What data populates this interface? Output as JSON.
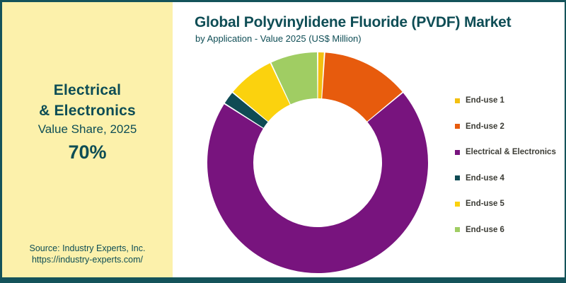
{
  "page": {
    "frame_color": "#14535a",
    "sidebar_bg": "#fcf1ab",
    "teal_text": "#0d4d55",
    "legend_text_color": "#3c3c35"
  },
  "header": {
    "title": "Global Polyvinylidene Fluoride (PVDF) Market",
    "subtitle": "by Application - Value 2025 (US$ Million)"
  },
  "sidebar": {
    "highlight_line1": "Electrical",
    "highlight_line2": "& Electronics",
    "caption": "Value Share, 2025",
    "value": "70%",
    "source_line1": "Source: Industry Experts, Inc.",
    "source_line2": "https://industry-experts.com/"
  },
  "chart_data": {
    "type": "pie",
    "variant": "donut",
    "title": "Global Polyvinylidene Fluoride (PVDF) Market",
    "subtitle": "by Application - Value 2025 (US$ Million)",
    "values_are_percent_share": true,
    "start_angle_deg": 0,
    "direction": "clockwise",
    "donut_hole_ratio": 0.58,
    "legend_position": "right",
    "highlight": {
      "label": "Electrical & Electronics",
      "share_label": "70%"
    },
    "series": [
      {
        "label": "End-use 1",
        "value": 1,
        "color": "#f3c011"
      },
      {
        "label": "End-use 2",
        "value": 13,
        "color": "#e75b0d"
      },
      {
        "label": "Electrical & Electronics",
        "value": 70,
        "color": "#78147e"
      },
      {
        "label": "End-use 4",
        "value": 2,
        "color": "#0f4b54"
      },
      {
        "label": "End-use 5",
        "value": 7,
        "color": "#fbd20e"
      },
      {
        "label": "End-use 6",
        "value": 7,
        "color": "#a0cd63"
      }
    ]
  }
}
